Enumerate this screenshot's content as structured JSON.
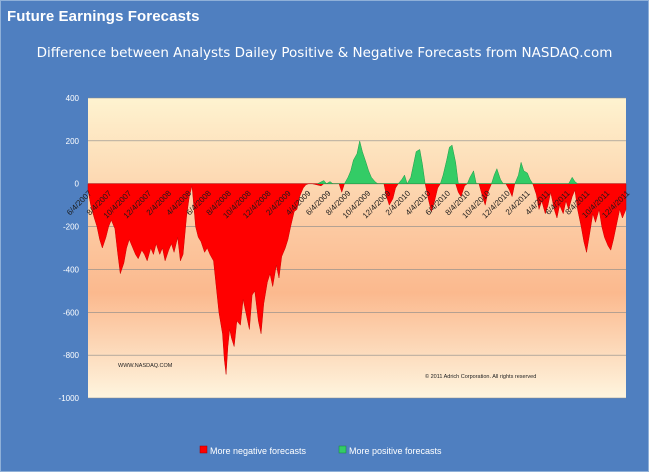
{
  "panel": {
    "title": "Future Earnings Forecasts"
  },
  "colors": {
    "background": "#4f7fc0",
    "negative": "#ff0000",
    "positive": "#33cc66",
    "gradient_top": "#fef3d0",
    "gradient_mid": "#fbb98e",
    "gradient_bottom": "#fef5df"
  },
  "chart_data": {
    "type": "area",
    "title": "Difference between Analysts Dailey Positive & Negative Forecasts from NASDAQ.com",
    "ylim": [
      -1000,
      400
    ],
    "yticks": [
      400,
      200,
      0,
      -200,
      -400,
      -600,
      -800,
      -1000
    ],
    "gridlines": true,
    "legend_position": "bottom",
    "x_tick_labels": [
      "6/4/2007",
      "8/4/2007",
      "10/4/2007",
      "12/4/2007",
      "2/4/2008",
      "4/4/2008",
      "6/4/2008",
      "8/4/2008",
      "10/4/2008",
      "12/4/2008",
      "2/4/2009",
      "4/4/2009",
      "6/4/2009",
      "8/4/2009",
      "10/4/2009",
      "12/4/2009",
      "2/4/2010",
      "4/4/2010",
      "6/4/2010",
      "8/4/2010",
      "10/4/2010",
      "12/4/2010",
      "2/4/2011",
      "4/4/2011",
      "6/4/2011",
      "8/4/2011",
      "10/4/2011",
      "12/4/2011"
    ],
    "series": [
      {
        "name": "More negative forecasts",
        "color": "#ff0000",
        "points": [
          [
            0,
            -30
          ],
          [
            0.3,
            -100
          ],
          [
            0.7,
            -160
          ],
          [
            1,
            -200
          ],
          [
            1.3,
            -260
          ],
          [
            1.6,
            -300
          ],
          [
            2,
            -250
          ],
          [
            2.3,
            -200
          ],
          [
            2.6,
            -170
          ],
          [
            3,
            -210
          ],
          [
            3.3,
            -320
          ],
          [
            3.6,
            -420
          ],
          [
            4,
            -370
          ],
          [
            4.3,
            -300
          ],
          [
            4.6,
            -260
          ],
          [
            5,
            -300
          ],
          [
            5.3,
            -330
          ],
          [
            5.6,
            -350
          ],
          [
            6,
            -310
          ],
          [
            6.3,
            -330
          ],
          [
            6.6,
            -360
          ],
          [
            7,
            -300
          ],
          [
            7.3,
            -330
          ],
          [
            7.6,
            -280
          ],
          [
            8,
            -330
          ],
          [
            8.3,
            -300
          ],
          [
            8.6,
            -360
          ],
          [
            9,
            -310
          ],
          [
            9.3,
            -280
          ],
          [
            9.6,
            -320
          ],
          [
            10,
            -250
          ],
          [
            10.3,
            -360
          ],
          [
            10.6,
            -330
          ],
          [
            11,
            -150
          ],
          [
            11.3,
            -60
          ],
          [
            11.6,
            -10
          ],
          [
            12,
            -200
          ],
          [
            12.3,
            -250
          ],
          [
            12.6,
            -270
          ],
          [
            13,
            -320
          ],
          [
            13.3,
            -300
          ],
          [
            13.6,
            -330
          ],
          [
            14,
            -360
          ],
          [
            14.3,
            -480
          ],
          [
            14.6,
            -600
          ],
          [
            15,
            -700
          ],
          [
            15.2,
            -820
          ],
          [
            15.4,
            -890
          ],
          [
            15.6,
            -760
          ],
          [
            15.8,
            -680
          ],
          [
            16,
            -720
          ],
          [
            16.3,
            -760
          ],
          [
            16.6,
            -640
          ],
          [
            17,
            -660
          ],
          [
            17.3,
            -540
          ],
          [
            17.6,
            -600
          ],
          [
            18,
            -680
          ],
          [
            18.3,
            -520
          ],
          [
            18.6,
            -500
          ],
          [
            19,
            -640
          ],
          [
            19.3,
            -700
          ],
          [
            19.6,
            -560
          ],
          [
            20,
            -460
          ],
          [
            20.3,
            -420
          ],
          [
            20.6,
            -480
          ],
          [
            21,
            -380
          ],
          [
            21.3,
            -440
          ],
          [
            21.6,
            -340
          ],
          [
            22,
            -300
          ],
          [
            22.3,
            -260
          ],
          [
            22.6,
            -200
          ],
          [
            23,
            -130
          ],
          [
            23.3,
            -120
          ],
          [
            23.6,
            -60
          ],
          [
            24,
            -20
          ],
          [
            24.3,
            -5
          ],
          [
            24.6,
            0
          ],
          [
            25,
            0
          ],
          [
            26,
            -10
          ],
          [
            26.3,
            0
          ],
          [
            28,
            0
          ],
          [
            28.3,
            -40
          ],
          [
            28.6,
            0
          ],
          [
            33,
            0
          ],
          [
            33.3,
            -60
          ],
          [
            33.6,
            -100
          ],
          [
            34,
            -70
          ],
          [
            34.3,
            -20
          ],
          [
            34.6,
            0
          ],
          [
            37.6,
            0
          ],
          [
            38,
            -80
          ],
          [
            38.3,
            -130
          ],
          [
            38.6,
            -90
          ],
          [
            39,
            -20
          ],
          [
            39.3,
            0
          ],
          [
            41,
            0
          ],
          [
            41.3,
            -40
          ],
          [
            41.6,
            -60
          ],
          [
            42,
            -10
          ],
          [
            42.3,
            0
          ],
          [
            43.6,
            0
          ],
          [
            44,
            -60
          ],
          [
            44.3,
            -100
          ],
          [
            44.6,
            -40
          ],
          [
            45,
            0
          ],
          [
            46.6,
            0
          ],
          [
            47,
            -30
          ],
          [
            47.3,
            -60
          ],
          [
            47.6,
            0
          ],
          [
            49.6,
            0
          ],
          [
            50,
            -50
          ],
          [
            50.3,
            -120
          ],
          [
            50.6,
            -80
          ],
          [
            51,
            -140
          ],
          [
            51.3,
            -100
          ],
          [
            51.6,
            -40
          ],
          [
            52,
            -120
          ],
          [
            52.3,
            -160
          ],
          [
            52.6,
            -100
          ],
          [
            53,
            -140
          ],
          [
            53.3,
            -80
          ],
          [
            53.6,
            -120
          ],
          [
            54,
            -60
          ],
          [
            54.3,
            -30
          ],
          [
            54.6,
            -120
          ],
          [
            55,
            -200
          ],
          [
            55.3,
            -270
          ],
          [
            55.6,
            -320
          ],
          [
            56,
            -220
          ],
          [
            56.3,
            -140
          ],
          [
            56.6,
            -180
          ],
          [
            57,
            -120
          ],
          [
            57.3,
            -200
          ],
          [
            57.6,
            -250
          ],
          [
            58,
            -290
          ],
          [
            58.3,
            -310
          ],
          [
            58.6,
            -260
          ],
          [
            59,
            -180
          ],
          [
            59.3,
            -120
          ],
          [
            59.6,
            -160
          ],
          [
            60,
            -120
          ]
        ]
      },
      {
        "name": "More positive forecasts",
        "color": "#33cc66",
        "points": [
          [
            25.6,
            0
          ],
          [
            26.3,
            15
          ],
          [
            26.6,
            0
          ],
          [
            27,
            10
          ],
          [
            27.3,
            0
          ],
          [
            28.6,
            0
          ],
          [
            29,
            30
          ],
          [
            29.3,
            60
          ],
          [
            29.6,
            110
          ],
          [
            30,
            140
          ],
          [
            30.3,
            200
          ],
          [
            30.6,
            150
          ],
          [
            31,
            100
          ],
          [
            31.3,
            60
          ],
          [
            31.6,
            30
          ],
          [
            32,
            10
          ],
          [
            32.3,
            0
          ],
          [
            34.6,
            0
          ],
          [
            35,
            20
          ],
          [
            35.3,
            40
          ],
          [
            35.6,
            0
          ],
          [
            36,
            30
          ],
          [
            36.3,
            90
          ],
          [
            36.6,
            150
          ],
          [
            37,
            160
          ],
          [
            37.3,
            90
          ],
          [
            37.6,
            0
          ],
          [
            39.3,
            0
          ],
          [
            39.6,
            40
          ],
          [
            40,
            110
          ],
          [
            40.3,
            170
          ],
          [
            40.6,
            180
          ],
          [
            41,
            100
          ],
          [
            41.3,
            0
          ],
          [
            42.3,
            0
          ],
          [
            42.6,
            30
          ],
          [
            43,
            60
          ],
          [
            43.3,
            0
          ],
          [
            45,
            0
          ],
          [
            45.3,
            40
          ],
          [
            45.6,
            70
          ],
          [
            46,
            20
          ],
          [
            46.3,
            0
          ],
          [
            47.6,
            0
          ],
          [
            48,
            40
          ],
          [
            48.3,
            100
          ],
          [
            48.6,
            60
          ],
          [
            49,
            50
          ],
          [
            49.3,
            20
          ],
          [
            49.6,
            0
          ],
          [
            53.6,
            0
          ],
          [
            54,
            30
          ],
          [
            54.3,
            10
          ],
          [
            54.6,
            0
          ]
        ]
      }
    ],
    "annotations": [
      "WWW.NASDAQ.COM",
      "© 2011 Adrich Corporation. All rights reserved"
    ]
  }
}
